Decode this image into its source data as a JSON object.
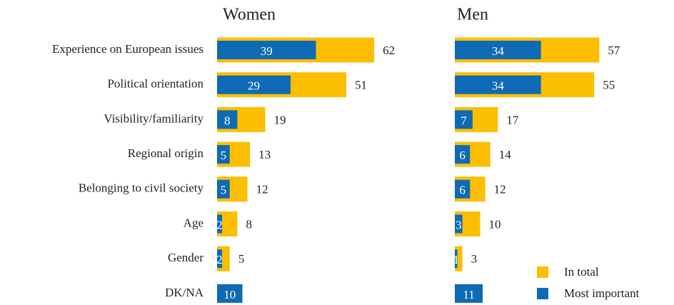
{
  "chart_data": {
    "type": "bar",
    "orientation": "horizontal",
    "categories": [
      "Experience on European issues",
      "Political orientation",
      "Visibility/familiarity",
      "Regional origin",
      "Belonging to civil society",
      "Age",
      "Gender",
      "DK/NA"
    ],
    "legend": [
      {
        "name": "In total",
        "color": "#fbbf00"
      },
      {
        "name": "Most important",
        "color": "#0e6ab4"
      }
    ],
    "panels": [
      {
        "title": "Women",
        "series": [
          {
            "values": [
              62,
              51,
              19,
              13,
              12,
              8,
              5,
              null
            ]
          },
          {
            "values": [
              39,
              29,
              8,
              5,
              5,
              2,
              2,
              10
            ]
          }
        ]
      },
      {
        "title": "Men",
        "series": [
          {
            "values": [
              57,
              55,
              17,
              14,
              12,
              10,
              3,
              null
            ]
          },
          {
            "values": [
              34,
              34,
              7,
              6,
              6,
              3,
              1,
              11
            ]
          }
        ]
      }
    ]
  }
}
